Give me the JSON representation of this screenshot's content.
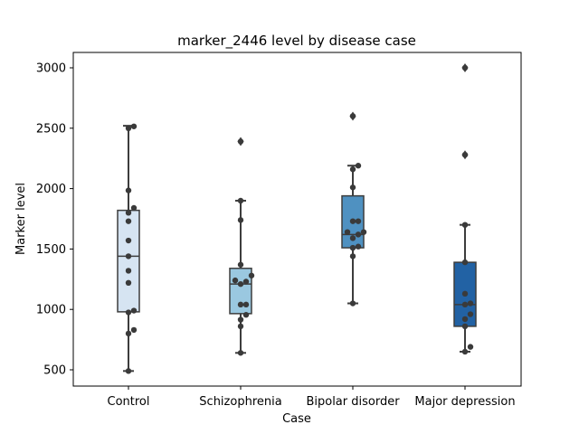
{
  "chart_data": {
    "type": "box",
    "title": "marker_2446 level by disease case",
    "xlabel": "Case",
    "ylabel": "Marker level",
    "ylim": [
      365,
      3100
    ],
    "yticks": [
      500,
      1000,
      1500,
      2000,
      2500,
      3000
    ],
    "grid": false,
    "categories": [
      "Control",
      "Schizophrenia",
      "Bipolar disorder",
      "Major depression"
    ],
    "colors": [
      "#d6e4f2",
      "#9ac8e0",
      "#4f91c1",
      "#2262a4"
    ],
    "boxes": [
      {
        "category": "Control",
        "whisker_low": 490,
        "q1": 980,
        "median": 1440,
        "q3": 1820,
        "whisker_high": 2520,
        "outliers": []
      },
      {
        "category": "Schizophrenia",
        "whisker_low": 640,
        "q1": 965,
        "median": 1210,
        "q3": 1340,
        "whisker_high": 1900,
        "outliers": [
          2390
        ]
      },
      {
        "category": "Bipolar disorder",
        "whisker_low": 1050,
        "q1": 1510,
        "median": 1620,
        "q3": 1940,
        "whisker_high": 2190,
        "outliers": [
          2600
        ]
      },
      {
        "category": "Major depression",
        "whisker_low": 650,
        "q1": 860,
        "median": 1040,
        "q3": 1390,
        "whisker_high": 1700,
        "outliers": [
          2280,
          3000
        ]
      }
    ],
    "points": [
      [
        490,
        800,
        830,
        975,
        990,
        1220,
        1320,
        1440,
        1570,
        1730,
        1800,
        1840,
        1985,
        2500,
        2515
      ],
      [
        640,
        860,
        915,
        955,
        1040,
        1040,
        1210,
        1230,
        1240,
        1280,
        1370,
        1740,
        1900,
        2390
      ],
      [
        1050,
        1440,
        1510,
        1520,
        1590,
        1620,
        1640,
        1640,
        1730,
        1730,
        2010,
        2160,
        2190,
        2600
      ],
      [
        650,
        690,
        860,
        920,
        960,
        1040,
        1050,
        1130,
        1390,
        1700,
        2280,
        3000
      ]
    ]
  }
}
